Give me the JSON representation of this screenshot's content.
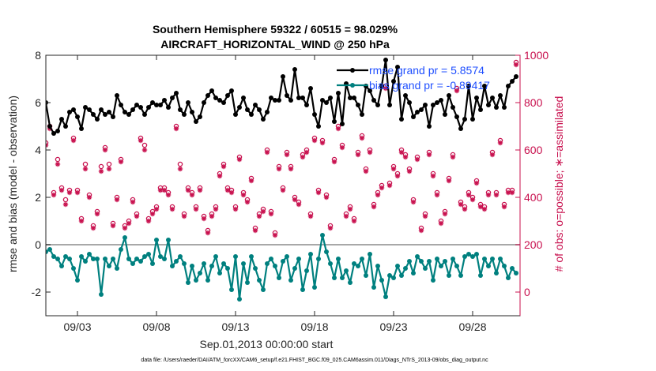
{
  "chart_data": {
    "type": "line",
    "title": "Southern Hemisphere 59322 / 60515 = 98.029%",
    "subtitle": "AIRCRAFT_HORIZONTAL_WIND @ 250 hPa",
    "xlabel": "Sep.01,2013 00:00:00 start",
    "ylabel_left": "rmse and bias (model - observation)",
    "ylabel_right": "# of obs: o=possible; ∗=assimilated",
    "footer": "data file: /Users/raeder/DAI/ATM_forcXX/CAM6_setup/f.e21.FHIST_BGC.f09_025.CAM6assim.011/Diags_NTrS_2013-09/obs_diag_output.nc",
    "xlim": [
      1,
      31
    ],
    "ylim_left": [
      -3,
      8
    ],
    "ylim_right": [
      -100,
      1000
    ],
    "x_tick_values": [
      3,
      8,
      13,
      18,
      23,
      28
    ],
    "x_tick_labels": [
      "09/03",
      "09/08",
      "09/13",
      "09/18",
      "09/23",
      "09/28"
    ],
    "y_left_ticks": [
      -2,
      0,
      2,
      4,
      6,
      8
    ],
    "y_right_ticks": [
      0,
      200,
      400,
      600,
      800,
      1000
    ],
    "grid": false,
    "zero_line": true,
    "legend_position": "top-right",
    "colors": {
      "rmse": "#000000",
      "bias": "#00807f",
      "obs": "#c8104e",
      "legend_text": "#1f4fff",
      "zero_line": "#a8a8a8"
    },
    "series": [
      {
        "name": "rmse grand pr = 5.8574",
        "axis": "left",
        "x": [
          1.0,
          1.25,
          1.5,
          1.75,
          2.0,
          2.25,
          2.5,
          2.75,
          3.0,
          3.25,
          3.5,
          3.75,
          4.0,
          4.25,
          4.5,
          4.75,
          5.0,
          5.25,
          5.5,
          5.75,
          6.0,
          6.25,
          6.5,
          6.75,
          7.0,
          7.25,
          7.5,
          7.75,
          8.0,
          8.25,
          8.5,
          8.75,
          9.0,
          9.25,
          9.5,
          9.75,
          10.0,
          10.25,
          10.5,
          10.75,
          11.0,
          11.25,
          11.5,
          11.75,
          12.0,
          12.25,
          12.5,
          12.75,
          13.0,
          13.25,
          13.5,
          13.75,
          14.0,
          14.25,
          14.5,
          14.75,
          15.0,
          15.25,
          15.5,
          15.75,
          16.0,
          16.25,
          16.5,
          16.75,
          17.0,
          17.25,
          17.5,
          17.75,
          18.0,
          18.25,
          18.5,
          18.75,
          19.0,
          19.25,
          19.5,
          19.75,
          20.0,
          20.25,
          20.5,
          20.75,
          21.0,
          21.25,
          21.5,
          21.75,
          22.0,
          22.25,
          22.5,
          22.75,
          23.0,
          23.25,
          23.5,
          23.75,
          24.0,
          24.25,
          24.5,
          24.75,
          25.0,
          25.25,
          25.5,
          25.75,
          26.0,
          26.25,
          26.5,
          26.75,
          27.0,
          27.25,
          27.5,
          27.75,
          28.0,
          28.25,
          28.5,
          28.75,
          29.0,
          29.25,
          29.5,
          29.75,
          30.0,
          30.25,
          30.5,
          30.75
        ],
        "values": [
          6.0,
          5.0,
          4.7,
          4.8,
          5.3,
          5.0,
          5.6,
          5.7,
          5.4,
          4.9,
          5.8,
          5.7,
          5.5,
          5.3,
          5.7,
          5.5,
          5.6,
          5.4,
          6.3,
          5.9,
          5.6,
          5.5,
          5.7,
          5.9,
          5.8,
          5.5,
          5.8,
          6.0,
          5.9,
          5.9,
          6.1,
          5.8,
          6.2,
          6.4,
          5.7,
          5.5,
          6.0,
          5.6,
          5.2,
          5.4,
          6.0,
          6.3,
          6.5,
          6.2,
          6.1,
          6.0,
          6.3,
          6.5,
          5.5,
          5.8,
          6.2,
          5.7,
          5.5,
          5.9,
          5.7,
          5.3,
          5.6,
          6.2,
          6.1,
          6.1,
          7.1,
          6.3,
          6.1,
          7.4,
          6.2,
          6.2,
          5.9,
          6.6,
          5.5,
          5.0,
          6.1,
          6.0,
          6.2,
          5.2,
          6.4,
          5.1,
          6.8,
          6.2,
          6.2,
          5.9,
          5.5,
          6.7,
          6.5,
          6.1,
          5.9,
          6.7,
          7.8,
          5.9,
          6.9,
          7.5,
          5.3,
          6.3,
          6.0,
          5.4,
          5.6,
          5.7,
          5.9,
          5.0,
          5.9,
          6.0,
          6.1,
          5.5,
          6.3,
          5.8,
          5.4,
          4.9,
          5.3,
          6.7,
          5.3,
          6.2,
          5.7,
          6.7,
          5.9,
          6.2,
          5.8,
          6.3,
          5.8,
          6.7,
          6.9,
          7.1
        ]
      },
      {
        "name": "bias grand pr = -0.89417",
        "axis": "left",
        "x": [
          1.0,
          1.25,
          1.5,
          1.75,
          2.0,
          2.25,
          2.5,
          2.75,
          3.0,
          3.25,
          3.5,
          3.75,
          4.0,
          4.25,
          4.5,
          4.75,
          5.0,
          5.25,
          5.5,
          5.75,
          6.0,
          6.25,
          6.5,
          6.75,
          7.0,
          7.25,
          7.5,
          7.75,
          8.0,
          8.25,
          8.5,
          8.75,
          9.0,
          9.25,
          9.5,
          9.75,
          10.0,
          10.25,
          10.5,
          10.75,
          11.0,
          11.25,
          11.5,
          11.75,
          12.0,
          12.25,
          12.5,
          12.75,
          13.0,
          13.25,
          13.5,
          13.75,
          14.0,
          14.25,
          14.5,
          14.75,
          15.0,
          15.25,
          15.5,
          15.75,
          16.0,
          16.25,
          16.5,
          16.75,
          17.0,
          17.25,
          17.5,
          17.75,
          18.0,
          18.25,
          18.5,
          18.75,
          19.0,
          19.25,
          19.5,
          19.75,
          20.0,
          20.25,
          20.5,
          20.75,
          21.0,
          21.25,
          21.5,
          21.75,
          22.0,
          22.25,
          22.5,
          22.75,
          23.0,
          23.25,
          23.5,
          23.75,
          24.0,
          24.25,
          24.5,
          24.75,
          25.0,
          25.25,
          25.5,
          25.75,
          26.0,
          26.25,
          26.5,
          26.75,
          27.0,
          27.25,
          27.5,
          27.75,
          28.0,
          28.25,
          28.5,
          28.75,
          29.0,
          29.25,
          29.5,
          29.75,
          30.0,
          30.25,
          30.5,
          30.75
        ],
        "values": [
          -0.3,
          -0.2,
          -0.5,
          -0.6,
          -0.9,
          -0.5,
          -0.6,
          -1.0,
          -1.5,
          -0.5,
          -0.7,
          -0.4,
          -0.6,
          -0.6,
          -2.1,
          -0.6,
          -0.9,
          -0.6,
          -1.0,
          -0.2,
          0.3,
          -0.6,
          -0.8,
          -0.6,
          -0.7,
          -0.5,
          -0.4,
          -0.8,
          0.2,
          -0.5,
          -0.6,
          0.2,
          -0.9,
          -0.7,
          -0.5,
          -0.8,
          -1.6,
          -0.9,
          -1.5,
          -1.2,
          -0.8,
          -1.5,
          -0.9,
          -0.5,
          -1.2,
          -0.8,
          -1.0,
          -1.9,
          -0.5,
          -2.3,
          -0.8,
          -1.6,
          -0.5,
          -1.0,
          -1.5,
          -1.9,
          -0.8,
          -0.6,
          -0.9,
          -1.4,
          -0.7,
          -0.5,
          -1.5,
          -1.0,
          -0.6,
          -1.9,
          -1.1,
          -0.4,
          -1.8,
          -0.6,
          0.4,
          -0.3,
          -0.8,
          -1.4,
          -0.6,
          -1.4,
          -1.1,
          -1.6,
          -0.8,
          -0.9,
          -0.6,
          -1.3,
          -0.4,
          -1.8,
          -0.9,
          -1.5,
          -2.2,
          -1.3,
          -1.4,
          -0.9,
          -1.3,
          -1.0,
          -0.7,
          -1.2,
          -0.5,
          -0.7,
          -1.0,
          -0.7,
          -1.5,
          -0.6,
          -0.9,
          -0.7,
          -1.3,
          -0.6,
          -0.9,
          -1.3,
          -0.5,
          -0.4,
          -0.5,
          -0.4,
          -1.3,
          -0.6,
          -0.9,
          -0.6,
          -1.2,
          -0.6,
          -0.9,
          -1.4,
          -1.0,
          -1.2
        ]
      },
      {
        "name": "obs possible",
        "axis": "right",
        "marker": "o",
        "x": [
          1.0,
          1.25,
          1.5,
          1.75,
          2.0,
          2.25,
          2.5,
          2.75,
          3.0,
          3.25,
          3.5,
          3.75,
          4.0,
          4.25,
          4.5,
          4.75,
          5.0,
          5.25,
          5.5,
          5.75,
          6.0,
          6.25,
          6.5,
          6.75,
          7.0,
          7.25,
          7.5,
          7.75,
          8.0,
          8.25,
          8.5,
          8.75,
          9.0,
          9.25,
          9.5,
          9.75,
          10.0,
          10.25,
          10.5,
          10.75,
          11.0,
          11.25,
          11.5,
          11.75,
          12.0,
          12.25,
          12.5,
          12.75,
          13.0,
          13.25,
          13.5,
          13.75,
          14.0,
          14.25,
          14.5,
          14.75,
          15.0,
          15.25,
          15.5,
          15.75,
          16.0,
          16.25,
          16.5,
          16.75,
          17.0,
          17.25,
          17.5,
          17.75,
          18.0,
          18.25,
          18.5,
          18.75,
          19.0,
          19.25,
          19.5,
          19.75,
          20.0,
          20.25,
          20.5,
          20.75,
          21.0,
          21.25,
          21.5,
          21.75,
          22.0,
          22.25,
          22.5,
          22.75,
          23.0,
          23.25,
          23.5,
          23.75,
          24.0,
          24.25,
          24.5,
          24.75,
          25.0,
          25.25,
          25.5,
          25.75,
          26.0,
          26.25,
          26.5,
          26.75,
          27.0,
          27.25,
          27.5,
          27.75,
          28.0,
          28.25,
          28.5,
          28.75,
          29.0,
          29.25,
          29.5,
          29.75,
          30.0,
          30.25,
          30.5,
          30.75
        ],
        "values": [
          630,
          700,
          420,
          560,
          440,
          390,
          430,
          650,
          430,
          310,
          540,
          410,
          280,
          340,
          530,
          610,
          540,
          290,
          400,
          560,
          280,
          300,
          390,
          330,
          650,
          620,
          310,
          340,
          360,
          440,
          440,
          420,
          360,
          700,
          540,
          330,
          440,
          420,
          360,
          440,
          320,
          260,
          330,
          360,
          500,
          540,
          440,
          430,
          360,
          570,
          420,
          390,
          480,
          270,
          330,
          350,
          600,
          340,
          250,
          530,
          440,
          590,
          530,
          400,
          380,
          580,
          600,
          330,
          650,
          430,
          640,
          410,
          280,
          560,
          700,
          620,
          330,
          360,
          310,
          590,
          660,
          520,
          600,
          370,
          420,
          450,
          870,
          460,
          530,
          500,
          600,
          580,
          520,
          390,
          570,
          270,
          330,
          590,
          500,
          420,
          300,
          340,
          480,
          580,
          860,
          380,
          360,
          420,
          400,
          470,
          370,
          360,
          420,
          590,
          420,
          640,
          370,
          430,
          430,
          970
        ]
      },
      {
        "name": "obs assimilated",
        "axis": "right",
        "marker": "*",
        "x": [
          1.0,
          1.25,
          1.5,
          1.75,
          2.0,
          2.25,
          2.5,
          2.75,
          3.0,
          3.25,
          3.5,
          3.75,
          4.0,
          4.25,
          4.5,
          4.75,
          5.0,
          5.25,
          5.5,
          5.75,
          6.0,
          6.25,
          6.5,
          6.75,
          7.0,
          7.25,
          7.5,
          7.75,
          8.0,
          8.25,
          8.5,
          8.75,
          9.0,
          9.25,
          9.5,
          9.75,
          10.0,
          10.25,
          10.5,
          10.75,
          11.0,
          11.25,
          11.5,
          11.75,
          12.0,
          12.25,
          12.5,
          12.75,
          13.0,
          13.25,
          13.5,
          13.75,
          14.0,
          14.25,
          14.5,
          14.75,
          15.0,
          15.25,
          15.5,
          15.75,
          16.0,
          16.25,
          16.5,
          16.75,
          17.0,
          17.25,
          17.5,
          17.75,
          18.0,
          18.25,
          18.5,
          18.75,
          19.0,
          19.25,
          19.5,
          19.75,
          20.0,
          20.25,
          20.5,
          20.75,
          21.0,
          21.25,
          21.5,
          21.75,
          22.0,
          22.25,
          22.5,
          22.75,
          23.0,
          23.25,
          23.5,
          23.75,
          24.0,
          24.25,
          24.5,
          24.75,
          25.0,
          25.25,
          25.5,
          25.75,
          26.0,
          26.25,
          26.5,
          26.75,
          27.0,
          27.25,
          27.5,
          27.75,
          28.0,
          28.25,
          28.5,
          28.75,
          29.0,
          29.25,
          29.5,
          29.75,
          30.0,
          30.25,
          30.5,
          30.75
        ],
        "values": [
          620,
          690,
          410,
          540,
          430,
          370,
          420,
          640,
          420,
          300,
          520,
          400,
          270,
          330,
          510,
          600,
          520,
          280,
          390,
          550,
          270,
          290,
          380,
          320,
          640,
          600,
          300,
          330,
          350,
          430,
          430,
          410,
          350,
          690,
          520,
          320,
          430,
          410,
          350,
          430,
          310,
          250,
          320,
          350,
          490,
          530,
          430,
          420,
          350,
          560,
          410,
          380,
          470,
          260,
          320,
          340,
          590,
          330,
          240,
          520,
          430,
          580,
          520,
          390,
          370,
          570,
          590,
          320,
          640,
          420,
          630,
          400,
          270,
          550,
          690,
          610,
          320,
          350,
          300,
          580,
          650,
          510,
          590,
          360,
          410,
          440,
          860,
          450,
          520,
          490,
          590,
          570,
          510,
          380,
          560,
          260,
          320,
          580,
          490,
          410,
          290,
          330,
          470,
          570,
          850,
          370,
          350,
          410,
          390,
          460,
          360,
          350,
          410,
          580,
          410,
          630,
          360,
          420,
          420,
          960
        ]
      }
    ]
  }
}
